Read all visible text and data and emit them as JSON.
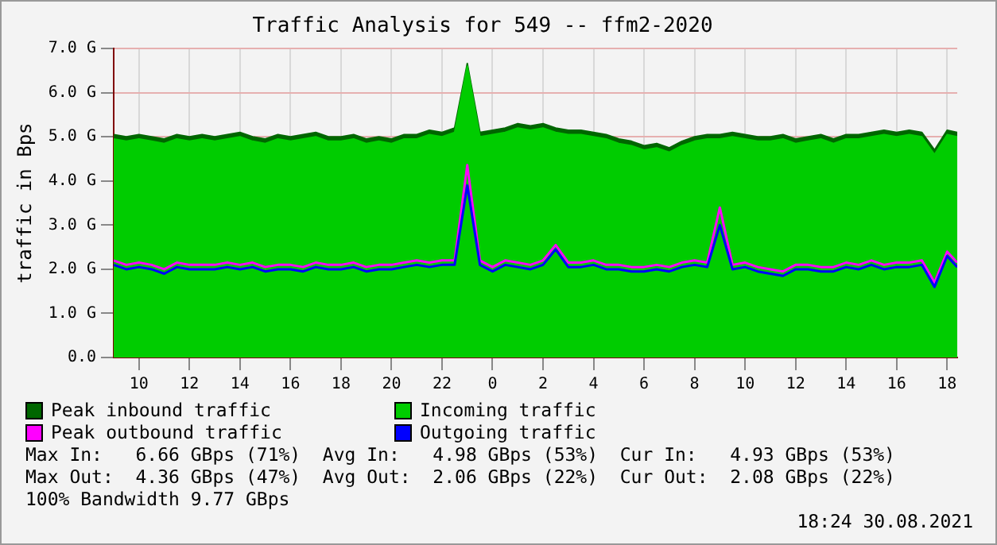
{
  "chart_data": {
    "type": "area",
    "title": "Traffic Analysis for 549 -- ffm2-2020",
    "ylabel": "traffic in Bps",
    "x": [
      "2021-08-29T09:00",
      "2021-08-29T09:30",
      "2021-08-29T10:00",
      "2021-08-29T10:30",
      "2021-08-29T11:00",
      "2021-08-29T11:30",
      "2021-08-29T12:00",
      "2021-08-29T12:30",
      "2021-08-29T13:00",
      "2021-08-29T13:30",
      "2021-08-29T14:00",
      "2021-08-29T14:30",
      "2021-08-29T15:00",
      "2021-08-29T15:30",
      "2021-08-29T16:00",
      "2021-08-29T16:30",
      "2021-08-29T17:00",
      "2021-08-29T17:30",
      "2021-08-29T18:00",
      "2021-08-29T18:30",
      "2021-08-29T19:00",
      "2021-08-29T19:30",
      "2021-08-29T20:00",
      "2021-08-29T20:30",
      "2021-08-29T21:00",
      "2021-08-29T21:30",
      "2021-08-29T22:00",
      "2021-08-29T22:30",
      "2021-08-29T23:00",
      "2021-08-29T23:30",
      "2021-08-30T00:00",
      "2021-08-30T00:30",
      "2021-08-30T01:00",
      "2021-08-30T01:30",
      "2021-08-30T02:00",
      "2021-08-30T02:30",
      "2021-08-30T03:00",
      "2021-08-30T03:30",
      "2021-08-30T04:00",
      "2021-08-30T04:30",
      "2021-08-30T05:00",
      "2021-08-30T05:30",
      "2021-08-30T06:00",
      "2021-08-30T06:30",
      "2021-08-30T07:00",
      "2021-08-30T07:30",
      "2021-08-30T08:00",
      "2021-08-30T08:30",
      "2021-08-30T09:00",
      "2021-08-30T09:30",
      "2021-08-30T10:00",
      "2021-08-30T10:30",
      "2021-08-30T11:00",
      "2021-08-30T11:30",
      "2021-08-30T12:00",
      "2021-08-30T12:30",
      "2021-08-30T13:00",
      "2021-08-30T13:30",
      "2021-08-30T14:00",
      "2021-08-30T14:30",
      "2021-08-30T15:00",
      "2021-08-30T15:30",
      "2021-08-30T16:00",
      "2021-08-30T16:30",
      "2021-08-30T17:00",
      "2021-08-30T17:30",
      "2021-08-30T18:00",
      "2021-08-30T18:24"
    ],
    "series": [
      {
        "name": "Peak inbound traffic",
        "color": "#006600",
        "values": [
          5.05,
          5.0,
          5.05,
          5.0,
          4.95,
          5.05,
          5.0,
          5.05,
          5.0,
          5.05,
          5.1,
          5.0,
          4.95,
          5.05,
          5.0,
          5.05,
          5.1,
          5.0,
          5.0,
          5.05,
          4.95,
          5.0,
          4.95,
          5.05,
          5.05,
          5.15,
          5.1,
          5.2,
          6.66,
          5.1,
          5.15,
          5.2,
          5.3,
          5.25,
          5.3,
          5.2,
          5.15,
          5.15,
          5.1,
          5.05,
          4.95,
          4.9,
          4.8,
          4.85,
          4.75,
          4.9,
          5.0,
          5.05,
          5.05,
          5.1,
          5.05,
          5.0,
          5.0,
          5.05,
          4.95,
          5.0,
          5.05,
          4.95,
          5.05,
          5.05,
          5.1,
          5.15,
          5.1,
          5.15,
          5.1,
          4.7,
          5.15,
          5.1
        ]
      },
      {
        "name": "Incoming traffic",
        "color": "#00cc00",
        "values": [
          4.95,
          4.9,
          4.95,
          4.9,
          4.85,
          4.95,
          4.9,
          4.95,
          4.9,
          4.95,
          5.0,
          4.9,
          4.85,
          4.95,
          4.9,
          4.95,
          5.0,
          4.9,
          4.9,
          4.95,
          4.85,
          4.9,
          4.85,
          4.95,
          4.95,
          5.05,
          5.0,
          5.1,
          6.6,
          5.0,
          5.05,
          5.1,
          5.2,
          5.15,
          5.2,
          5.1,
          5.05,
          5.05,
          5.0,
          4.95,
          4.85,
          4.8,
          4.7,
          4.75,
          4.65,
          4.8,
          4.9,
          4.95,
          4.95,
          5.0,
          4.95,
          4.9,
          4.9,
          4.95,
          4.85,
          4.9,
          4.95,
          4.85,
          4.95,
          4.95,
          5.0,
          5.05,
          5.0,
          5.05,
          5.0,
          4.6,
          5.05,
          5.0
        ]
      },
      {
        "name": "Peak outbound traffic",
        "type": "line",
        "color": "#ff00ff",
        "values": [
          2.2,
          2.1,
          2.15,
          2.1,
          2.0,
          2.15,
          2.1,
          2.1,
          2.1,
          2.15,
          2.1,
          2.15,
          2.05,
          2.1,
          2.1,
          2.05,
          2.15,
          2.1,
          2.1,
          2.15,
          2.05,
          2.1,
          2.1,
          2.15,
          2.2,
          2.15,
          2.2,
          2.2,
          4.36,
          2.2,
          2.05,
          2.2,
          2.15,
          2.1,
          2.2,
          2.55,
          2.15,
          2.15,
          2.2,
          2.1,
          2.1,
          2.05,
          2.05,
          2.1,
          2.05,
          2.15,
          2.2,
          2.15,
          3.4,
          2.1,
          2.15,
          2.05,
          2.0,
          1.95,
          2.1,
          2.1,
          2.05,
          2.05,
          2.15,
          2.1,
          2.2,
          2.1,
          2.15,
          2.15,
          2.2,
          1.7,
          2.4,
          2.15
        ]
      },
      {
        "name": "Outgoing traffic",
        "type": "line",
        "color": "#0000ff",
        "values": [
          2.1,
          2.0,
          2.05,
          2.0,
          1.9,
          2.05,
          2.0,
          2.0,
          2.0,
          2.05,
          2.0,
          2.05,
          1.95,
          2.0,
          2.0,
          1.95,
          2.05,
          2.0,
          2.0,
          2.05,
          1.95,
          2.0,
          2.0,
          2.05,
          2.1,
          2.05,
          2.1,
          2.1,
          3.9,
          2.1,
          1.95,
          2.1,
          2.05,
          2.0,
          2.1,
          2.45,
          2.05,
          2.05,
          2.1,
          2.0,
          2.0,
          1.95,
          1.95,
          2.0,
          1.95,
          2.05,
          2.1,
          2.05,
          3.0,
          2.0,
          2.05,
          1.95,
          1.9,
          1.85,
          2.0,
          2.0,
          1.95,
          1.95,
          2.05,
          2.0,
          2.1,
          2.0,
          2.05,
          2.05,
          2.1,
          1.6,
          2.3,
          2.05
        ]
      }
    ],
    "xlim": [
      "2021-08-29T09:00",
      "2021-08-30T18:24"
    ],
    "xticks": [
      {
        "value": "2021-08-29T10:00",
        "label": "10"
      },
      {
        "value": "2021-08-29T12:00",
        "label": "12"
      },
      {
        "value": "2021-08-29T14:00",
        "label": "14"
      },
      {
        "value": "2021-08-29T16:00",
        "label": "16"
      },
      {
        "value": "2021-08-29T18:00",
        "label": "18"
      },
      {
        "value": "2021-08-29T20:00",
        "label": "20"
      },
      {
        "value": "2021-08-29T22:00",
        "label": "22"
      },
      {
        "value": "2021-08-30T00:00",
        "label": "0"
      },
      {
        "value": "2021-08-30T02:00",
        "label": "2"
      },
      {
        "value": "2021-08-30T04:00",
        "label": "4"
      },
      {
        "value": "2021-08-30T06:00",
        "label": "6"
      },
      {
        "value": "2021-08-30T08:00",
        "label": "8"
      },
      {
        "value": "2021-08-30T10:00",
        "label": "10"
      },
      {
        "value": "2021-08-30T12:00",
        "label": "12"
      },
      {
        "value": "2021-08-30T14:00",
        "label": "14"
      },
      {
        "value": "2021-08-30T16:00",
        "label": "16"
      },
      {
        "value": "2021-08-30T18:00",
        "label": "18"
      }
    ],
    "ylim": [
      0,
      7
    ],
    "yticks": [
      {
        "value": 0,
        "label": "0.0"
      },
      {
        "value": 1,
        "label": "1.0 G"
      },
      {
        "value": 2,
        "label": "2.0 G"
      },
      {
        "value": 3,
        "label": "3.0 G"
      },
      {
        "value": 4,
        "label": "4.0 G"
      },
      {
        "value": 5,
        "label": "5.0 G"
      },
      {
        "value": 6,
        "label": "6.0 G"
      },
      {
        "value": 7,
        "label": "7.0 G"
      }
    ],
    "grid": true,
    "legend": "bottom left",
    "annotations": [
      "Max In:   6.66 GBps (71%)  Avg In:   4.98 GBps (53%)  Cur In:   4.93 GBps (53%)",
      "Max Out:  4.36 GBps (47%)  Avg Out:  2.06 GBps (22%)  Cur Out:  2.08 GBps (22%)",
      "100% Bandwidth 9.77 GBps",
      "18:24 30.08.2021"
    ]
  }
}
